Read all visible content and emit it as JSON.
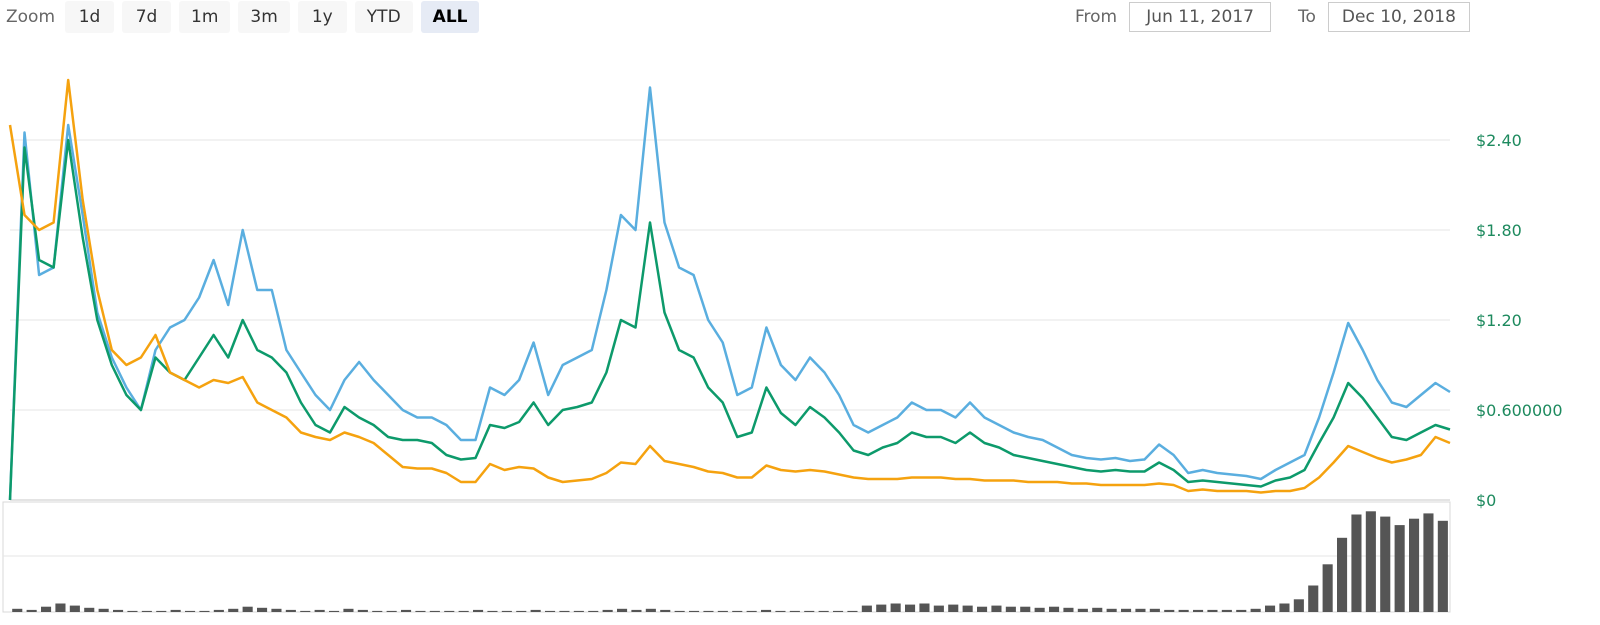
{
  "zoom": {
    "label": "Zoom",
    "buttons": [
      {
        "label": "1d",
        "active": false
      },
      {
        "label": "7d",
        "active": false
      },
      {
        "label": "1m",
        "active": false
      },
      {
        "label": "3m",
        "active": false
      },
      {
        "label": "1y",
        "active": false
      },
      {
        "label": "YTD",
        "active": false
      },
      {
        "label": "ALL",
        "active": true
      }
    ]
  },
  "range": {
    "from_label": "From",
    "from_value": "Jun 11, 2017",
    "to_label": "To",
    "to_value": "Dec 10, 2018"
  },
  "chart_data": {
    "type": "line",
    "x_range": [
      "Jun 11, 2017",
      "Dec 10, 2018"
    ],
    "ylim": [
      0,
      3.0
    ],
    "y_ticks": [
      {
        "value": 0,
        "label": "$0"
      },
      {
        "value": 0.6,
        "label": "$0.600000"
      },
      {
        "value": 1.2,
        "label": "$1.20"
      },
      {
        "value": 1.8,
        "label": "$1.80"
      },
      {
        "value": 2.4,
        "label": "$2.40"
      }
    ],
    "grid": true,
    "legend": "none",
    "series": [
      {
        "color": "#5aaedf",
        "values": [
          0.0,
          2.45,
          1.5,
          1.55,
          2.5,
          1.9,
          1.25,
          0.95,
          0.75,
          0.6,
          1.0,
          1.15,
          1.2,
          1.35,
          1.6,
          1.3,
          1.8,
          1.4,
          1.4,
          1.0,
          0.85,
          0.7,
          0.6,
          0.8,
          0.92,
          0.8,
          0.7,
          0.6,
          0.55,
          0.55,
          0.5,
          0.4,
          0.4,
          0.75,
          0.7,
          0.8,
          1.05,
          0.7,
          0.9,
          0.95,
          1.0,
          1.4,
          1.9,
          1.8,
          2.75,
          1.85,
          1.55,
          1.5,
          1.2,
          1.05,
          0.7,
          0.75,
          1.15,
          0.9,
          0.8,
          0.95,
          0.85,
          0.7,
          0.5,
          0.45,
          0.5,
          0.55,
          0.65,
          0.6,
          0.6,
          0.55,
          0.65,
          0.55,
          0.5,
          0.45,
          0.42,
          0.4,
          0.35,
          0.3,
          0.28,
          0.27,
          0.28,
          0.26,
          0.27,
          0.37,
          0.3,
          0.18,
          0.2,
          0.18,
          0.17,
          0.16,
          0.14,
          0.2,
          0.25,
          0.3,
          0.55,
          0.85,
          1.18,
          1.0,
          0.8,
          0.65,
          0.62,
          0.7,
          0.78,
          0.72
        ]
      },
      {
        "color": "#0d9a6b",
        "values": [
          0.0,
          2.35,
          1.6,
          1.55,
          2.4,
          1.75,
          1.2,
          0.9,
          0.7,
          0.6,
          0.95,
          0.85,
          0.8,
          0.95,
          1.1,
          0.95,
          1.2,
          1.0,
          0.95,
          0.85,
          0.65,
          0.5,
          0.45,
          0.62,
          0.55,
          0.5,
          0.42,
          0.4,
          0.4,
          0.38,
          0.3,
          0.27,
          0.28,
          0.5,
          0.48,
          0.52,
          0.65,
          0.5,
          0.6,
          0.62,
          0.65,
          0.85,
          1.2,
          1.15,
          1.85,
          1.25,
          1.0,
          0.95,
          0.75,
          0.65,
          0.42,
          0.45,
          0.75,
          0.58,
          0.5,
          0.62,
          0.55,
          0.45,
          0.33,
          0.3,
          0.35,
          0.38,
          0.45,
          0.42,
          0.42,
          0.38,
          0.45,
          0.38,
          0.35,
          0.3,
          0.28,
          0.26,
          0.24,
          0.22,
          0.2,
          0.19,
          0.2,
          0.19,
          0.19,
          0.25,
          0.2,
          0.12,
          0.13,
          0.12,
          0.11,
          0.1,
          0.09,
          0.13,
          0.15,
          0.2,
          0.38,
          0.55,
          0.78,
          0.68,
          0.55,
          0.42,
          0.4,
          0.45,
          0.5,
          0.47
        ]
      },
      {
        "color": "#f5a20f",
        "values": [
          2.5,
          1.9,
          1.8,
          1.85,
          2.8,
          2.0,
          1.4,
          1.0,
          0.9,
          0.95,
          1.1,
          0.85,
          0.8,
          0.75,
          0.8,
          0.78,
          0.82,
          0.65,
          0.6,
          0.55,
          0.45,
          0.42,
          0.4,
          0.45,
          0.42,
          0.38,
          0.3,
          0.22,
          0.21,
          0.21,
          0.18,
          0.12,
          0.12,
          0.24,
          0.2,
          0.22,
          0.21,
          0.15,
          0.12,
          0.13,
          0.14,
          0.18,
          0.25,
          0.24,
          0.36,
          0.26,
          0.24,
          0.22,
          0.19,
          0.18,
          0.15,
          0.15,
          0.23,
          0.2,
          0.19,
          0.2,
          0.19,
          0.17,
          0.15,
          0.14,
          0.14,
          0.14,
          0.15,
          0.15,
          0.15,
          0.14,
          0.14,
          0.13,
          0.13,
          0.13,
          0.12,
          0.12,
          0.12,
          0.11,
          0.11,
          0.1,
          0.1,
          0.1,
          0.1,
          0.11,
          0.1,
          0.06,
          0.07,
          0.06,
          0.06,
          0.06,
          0.05,
          0.06,
          0.06,
          0.08,
          0.15,
          0.25,
          0.36,
          0.32,
          0.28,
          0.25,
          0.27,
          0.3,
          0.42,
          0.38
        ]
      }
    ],
    "volume": {
      "color": "#555555",
      "values": [
        0.03,
        0.02,
        0.05,
        0.08,
        0.06,
        0.04,
        0.03,
        0.02,
        0.01,
        0.01,
        0.01,
        0.02,
        0.01,
        0.01,
        0.02,
        0.03,
        0.05,
        0.04,
        0.03,
        0.02,
        0.01,
        0.02,
        0.01,
        0.03,
        0.02,
        0.01,
        0.01,
        0.02,
        0.01,
        0.01,
        0.01,
        0.01,
        0.02,
        0.01,
        0.01,
        0.01,
        0.02,
        0.01,
        0.01,
        0.01,
        0.01,
        0.02,
        0.03,
        0.02,
        0.03,
        0.02,
        0.01,
        0.01,
        0.01,
        0.01,
        0.01,
        0.01,
        0.02,
        0.01,
        0.01,
        0.01,
        0.01,
        0.01,
        0.01,
        0.06,
        0.07,
        0.08,
        0.07,
        0.08,
        0.06,
        0.07,
        0.06,
        0.05,
        0.06,
        0.05,
        0.05,
        0.04,
        0.05,
        0.04,
        0.03,
        0.04,
        0.03,
        0.03,
        0.03,
        0.03,
        0.02,
        0.02,
        0.02,
        0.02,
        0.02,
        0.02,
        0.03,
        0.06,
        0.08,
        0.12,
        0.25,
        0.45,
        0.7,
        0.92,
        0.95,
        0.9,
        0.82,
        0.88,
        0.93,
        0.86
      ]
    }
  }
}
